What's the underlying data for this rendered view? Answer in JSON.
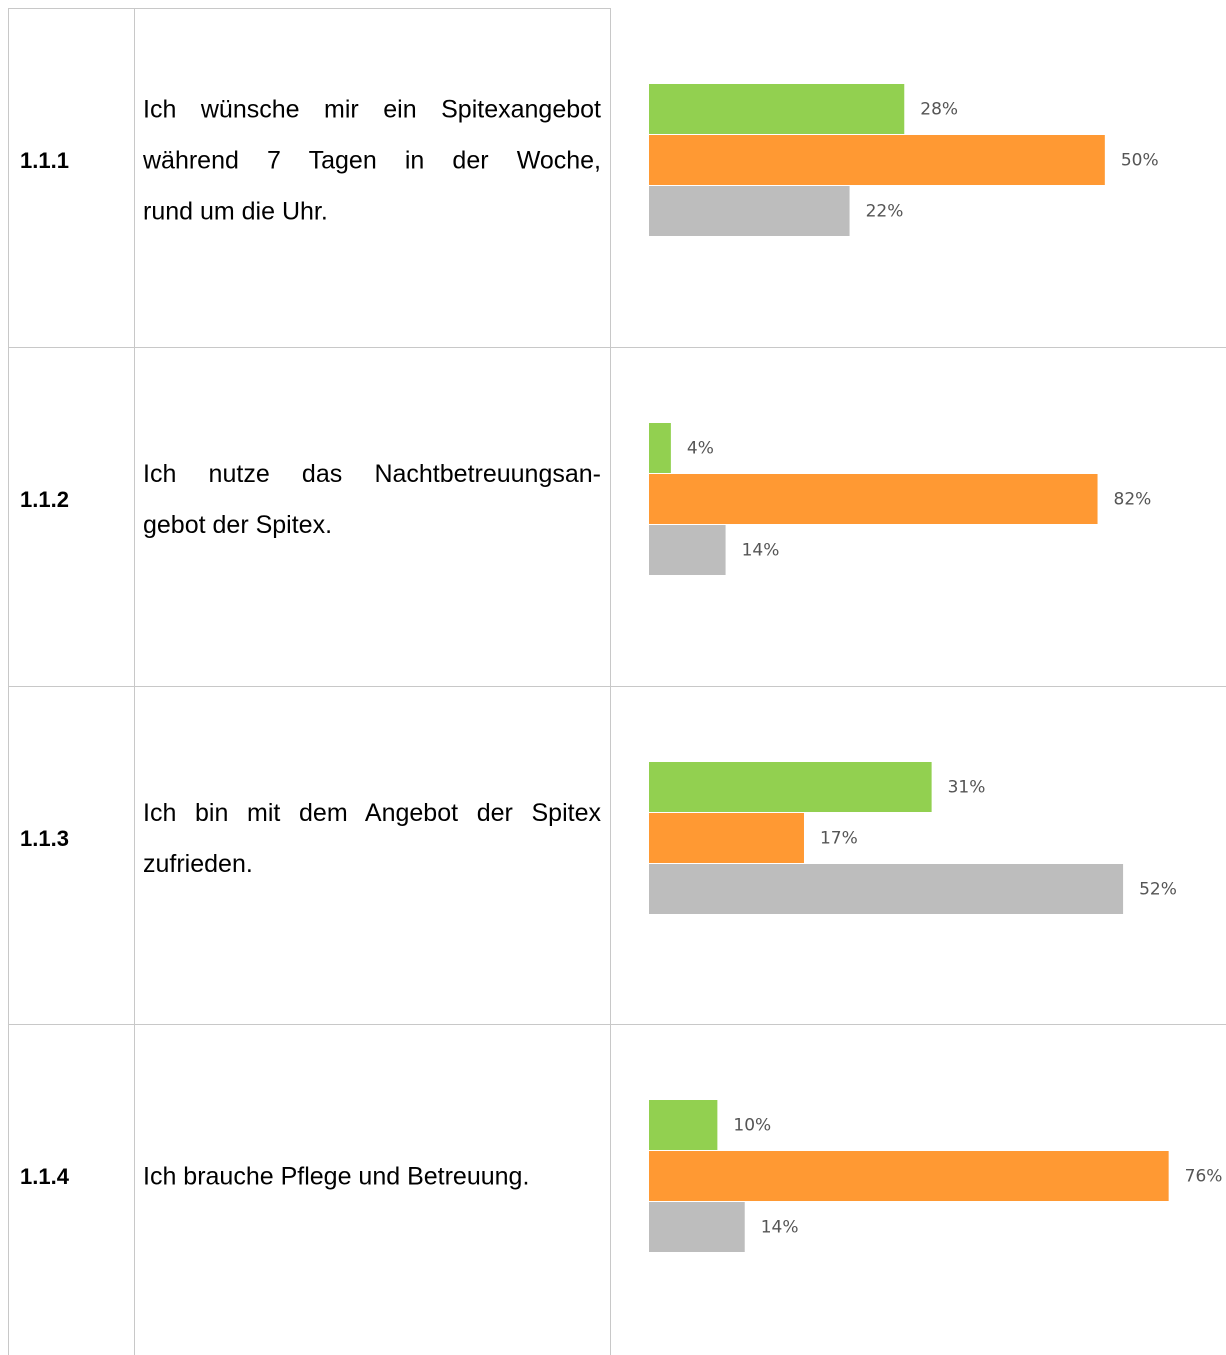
{
  "table": {
    "colors": [
      "#92d050",
      "#ff9933",
      "#bdbdbd"
    ],
    "rows": [
      {
        "id": "1.1.1",
        "lines": [
          "Ich wünsche mir ein Spitexangebot",
          "während 7 Tagen in der Woche,",
          "rund um die Uhr."
        ],
        "chart": {
          "type": "bar",
          "values": [
            28,
            50,
            22
          ],
          "value_labels": [
            "28%",
            "50%",
            "22%"
          ],
          "xlim": [
            0,
            60
          ]
        }
      },
      {
        "id": "1.1.2",
        "lines": [
          "Ich nutze das Nachtbetreuungsan-",
          "gebot der Spitex."
        ],
        "chart": {
          "type": "bar",
          "values": [
            4,
            82,
            14
          ],
          "value_labels": [
            "4%",
            "82%",
            "14%"
          ],
          "xlim": [
            0,
            100
          ]
        }
      },
      {
        "id": "1.1.3",
        "lines": [
          "Ich bin mit dem Angebot der Spitex",
          "zufrieden."
        ],
        "chart": {
          "type": "bar",
          "values": [
            31,
            17,
            52
          ],
          "value_labels": [
            "31%",
            "17%",
            "52%"
          ],
          "xlim": [
            0,
            60
          ]
        }
      },
      {
        "id": "1.1.4",
        "lines": [
          "Ich brauche Pflege und Betreuung."
        ],
        "chart": {
          "type": "bar",
          "values": [
            10,
            76,
            14
          ],
          "value_labels": [
            "10%",
            "76%",
            "14%"
          ],
          "xlim": [
            0,
            80
          ]
        }
      }
    ]
  }
}
